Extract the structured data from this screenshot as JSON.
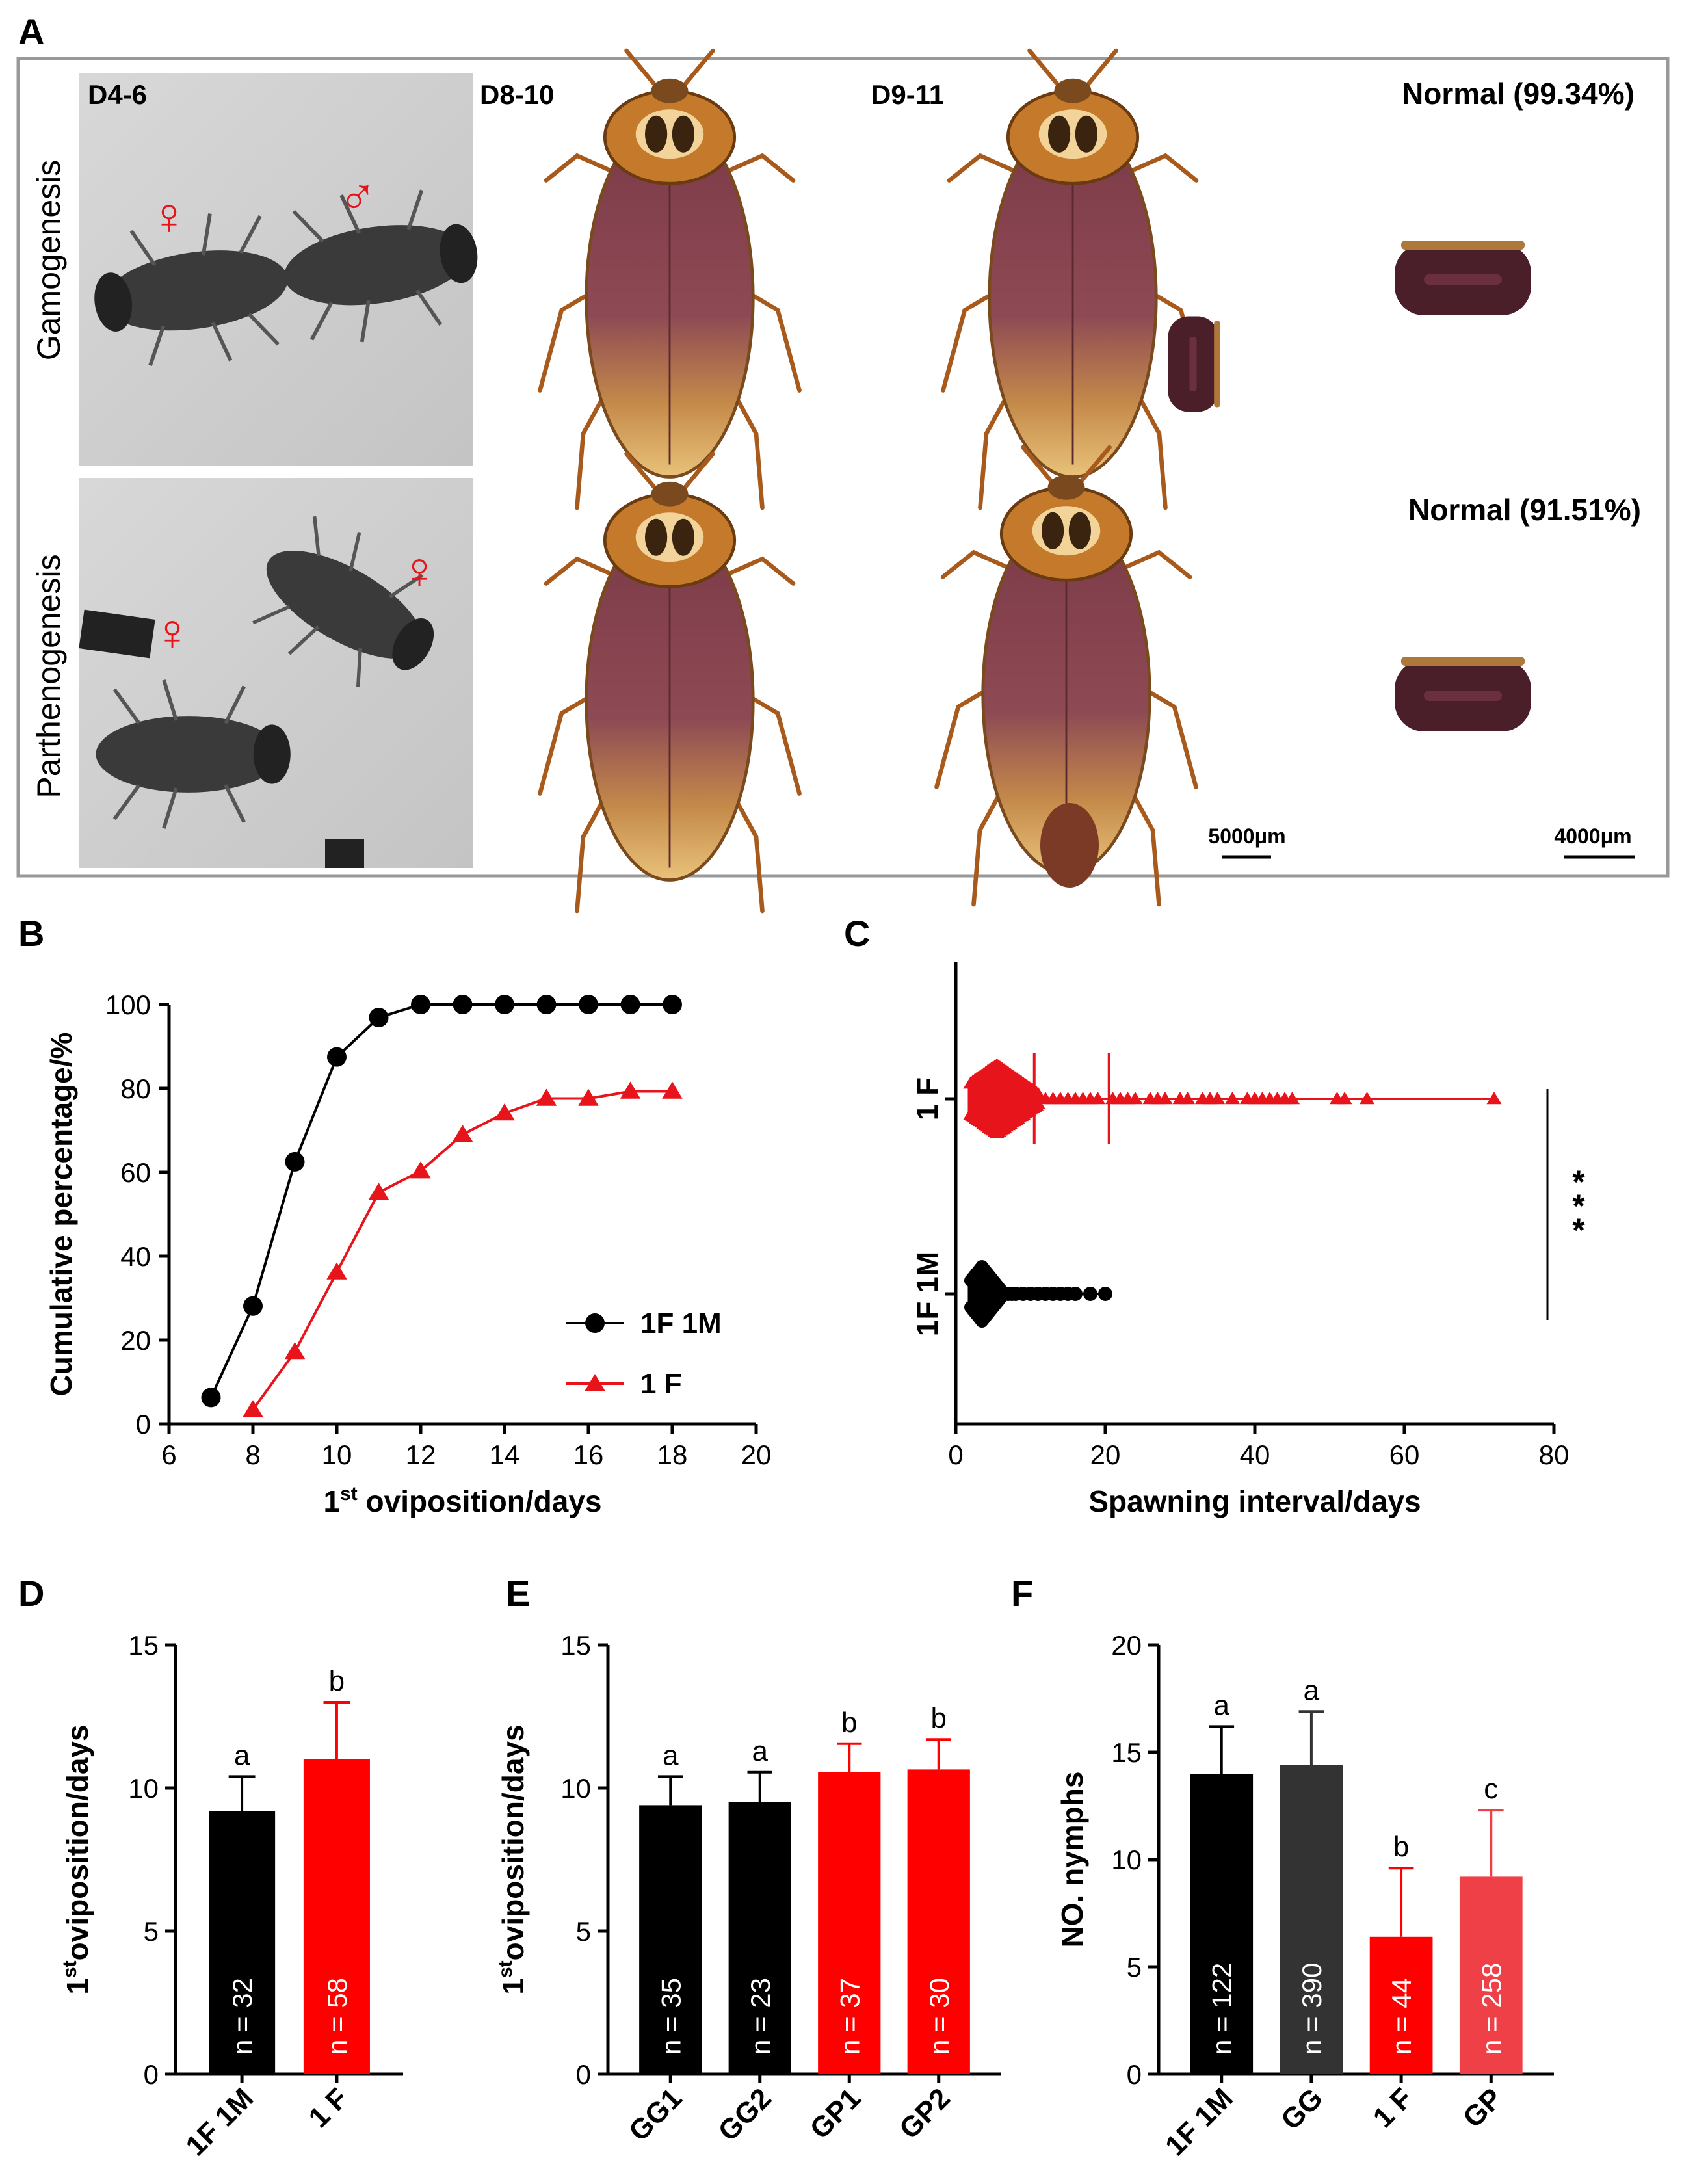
{
  "panel_letters": [
    "A",
    "B",
    "C",
    "D",
    "E",
    "F"
  ],
  "panel_a": {
    "row_labels": [
      "Gamogenesis",
      "Parthenogenesis"
    ],
    "column_labels": [
      "D4-6",
      "D8-10",
      "D9-11"
    ],
    "normal_labels": [
      "Normal (99.34%)",
      "Normal (91.51%)"
    ],
    "symbols": {
      "female": "♀",
      "male": "♂"
    },
    "scale_bars": [
      "5000μm",
      "4000μm"
    ],
    "colors": {
      "background": "#ffffff",
      "symbol": "#e8141c",
      "insect": "#b5601f",
      "ootheca": "#4a1f2a"
    }
  },
  "chart_data": [
    {
      "id": "B",
      "type": "line",
      "xlabel": "1st oviposition/days",
      "xlabel_main": "1",
      "xlabel_sup": "st",
      "xlabel_rest": "oviposition/days",
      "ylabel": "Cumulative percentage/%",
      "xlim": [
        6,
        20
      ],
      "ylim": [
        0,
        100
      ],
      "xticks": [
        6,
        8,
        10,
        12,
        14,
        16,
        18,
        20
      ],
      "yticks": [
        0,
        20,
        40,
        60,
        80,
        100
      ],
      "legend_position": "center-right",
      "series": [
        {
          "name": "1F 1M",
          "color": "#000000",
          "marker": "circle",
          "x": [
            7,
            8,
            9,
            10,
            11,
            12,
            13,
            14,
            15,
            16,
            17,
            18
          ],
          "y": [
            6.3,
            28.1,
            62.5,
            87.5,
            96.9,
            100,
            100,
            100,
            100,
            100,
            100,
            100
          ]
        },
        {
          "name": "1 F",
          "color": "#e8141c",
          "marker": "triangle",
          "x": [
            8,
            9,
            10,
            11,
            12,
            13,
            14,
            15,
            16,
            17,
            18
          ],
          "y": [
            3.4,
            17.2,
            36.2,
            55.2,
            60.3,
            69.0,
            74.1,
            77.6,
            77.6,
            79.3,
            79.3
          ]
        }
      ]
    },
    {
      "id": "C",
      "type": "scatter",
      "xlabel": "Spawning interval/days",
      "xlim": [
        0,
        80
      ],
      "xticks": [
        0,
        20,
        40,
        60,
        80
      ],
      "categories": [
        "1 F",
        "1F 1M"
      ],
      "significance": "***",
      "series": [
        {
          "name": "1 F",
          "color": "#e8141c",
          "marker": "triangle",
          "median": 5,
          "p_lines": [
            10.5,
            20.5
          ],
          "dense_range": [
            2,
            11
          ],
          "dense_peak": 5.5,
          "dense_halfwidth": 52,
          "outliers": [
            12,
            13,
            14,
            15,
            16,
            17,
            18,
            19,
            21,
            22,
            23,
            24,
            26,
            27,
            28,
            30,
            31,
            33,
            34,
            35,
            37,
            39,
            40,
            41,
            42,
            43,
            44,
            45,
            51,
            52,
            55,
            72
          ]
        },
        {
          "name": "1F 1M",
          "color": "#000000",
          "marker": "circle",
          "median": 3.5,
          "dense_range": [
            2,
            6
          ],
          "dense_peak": 3.5,
          "dense_halfwidth": 42,
          "outliers": [
            6.5,
            7,
            7.5,
            8,
            9,
            10,
            11,
            12,
            13,
            14,
            15,
            16,
            18,
            20
          ]
        }
      ]
    },
    {
      "id": "D",
      "type": "bar",
      "ylabel_sup": "st",
      "ylabel_main": "1",
      "ylabel_rest": "oviposition/days",
      "ylabel": "1st oviposition/days",
      "ylim": [
        0,
        15
      ],
      "yticks": [
        0,
        5,
        10,
        15
      ],
      "categories": [
        "1F 1M",
        "1 F"
      ],
      "values": [
        9.2,
        11.0
      ],
      "errors": [
        1.2,
        2.0
      ],
      "letters": [
        "a",
        "b"
      ],
      "n_labels": [
        "n = 32",
        "n = 58"
      ],
      "colors": [
        "#000000",
        "#ff0000"
      ]
    },
    {
      "id": "E",
      "type": "bar",
      "ylabel_sup": "st",
      "ylabel_main": "1",
      "ylabel_rest": "oviposition/days",
      "ylabel": "1st oviposition/days",
      "ylim": [
        0,
        15
      ],
      "yticks": [
        0,
        5,
        10,
        15
      ],
      "categories": [
        "GG1",
        "GG2",
        "GP1",
        "GP2"
      ],
      "values": [
        9.4,
        9.5,
        10.55,
        10.65
      ],
      "errors": [
        1.0,
        1.05,
        1.0,
        1.05
      ],
      "letters": [
        "a",
        "a",
        "b",
        "b"
      ],
      "n_labels": [
        "n = 35",
        "n = 23",
        "n = 37",
        "n = 30"
      ],
      "colors": [
        "#000000",
        "#000000",
        "#ff0000",
        "#ff0000"
      ]
    },
    {
      "id": "F",
      "type": "bar",
      "ylabel": "NO. nymphs",
      "ylim": [
        0,
        20
      ],
      "yticks": [
        0,
        5,
        10,
        15,
        20
      ],
      "categories": [
        "1F 1M",
        "GG",
        "1 F",
        "GP"
      ],
      "values": [
        14.0,
        14.4,
        6.4,
        9.2
      ],
      "errors": [
        2.2,
        2.5,
        3.2,
        3.1
      ],
      "letters": [
        "a",
        "a",
        "b",
        "c"
      ],
      "n_labels": [
        "n = 122",
        "n = 390",
        "n = 44",
        "n = 258"
      ],
      "colors": [
        "#000000",
        "#333333",
        "#ff0000",
        "#f04047"
      ]
    }
  ]
}
